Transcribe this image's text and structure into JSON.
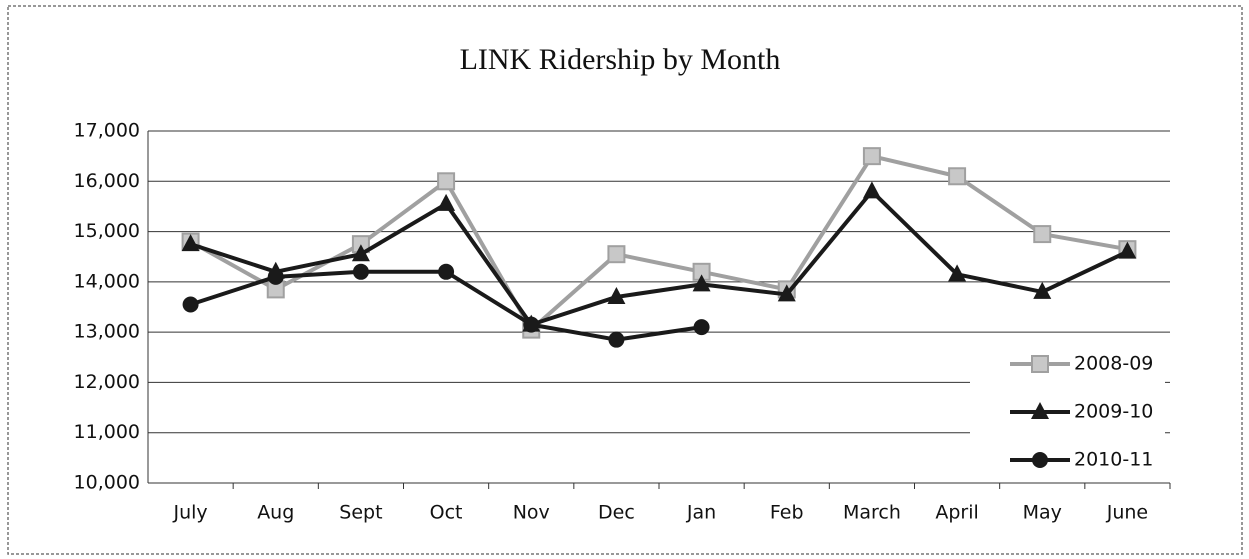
{
  "chart_data": {
    "type": "line",
    "title": "LINK Ridership by Month",
    "categories": [
      "July",
      "Aug",
      "Sept",
      "Oct",
      "Nov",
      "Dec",
      "Jan",
      "Feb",
      "March",
      "April",
      "May",
      "June"
    ],
    "series": [
      {
        "name": "2008-09",
        "color": "#a0a0a0",
        "marker": "square",
        "values": [
          14800,
          13850,
          14750,
          16000,
          13050,
          14550,
          14200,
          13850,
          16500,
          16100,
          14950,
          14650
        ]
      },
      {
        "name": "2009-10",
        "color": "#1a1a1a",
        "marker": "triangle",
        "values": [
          14750,
          14200,
          14550,
          15550,
          13150,
          13700,
          13950,
          13750,
          15800,
          14150,
          13800,
          14600
        ]
      },
      {
        "name": "2010-11",
        "color": "#1a1a1a",
        "marker": "circle",
        "values": [
          13550,
          14100,
          14200,
          14200,
          13150,
          12850,
          13100,
          null,
          null,
          null,
          null,
          null
        ]
      }
    ],
    "ylim": [
      10000,
      17000
    ],
    "yticks": [
      {
        "value": 10000,
        "label": "10,000"
      },
      {
        "value": 11000,
        "label": "11,000"
      },
      {
        "value": 12000,
        "label": "12,000"
      },
      {
        "value": 13000,
        "label": "13,000"
      },
      {
        "value": 14000,
        "label": "14,000"
      },
      {
        "value": 15000,
        "label": "15,000"
      },
      {
        "value": 16000,
        "label": "16,000"
      },
      {
        "value": 17000,
        "label": "17,000"
      }
    ],
    "grid": true,
    "legend": "lower right"
  }
}
